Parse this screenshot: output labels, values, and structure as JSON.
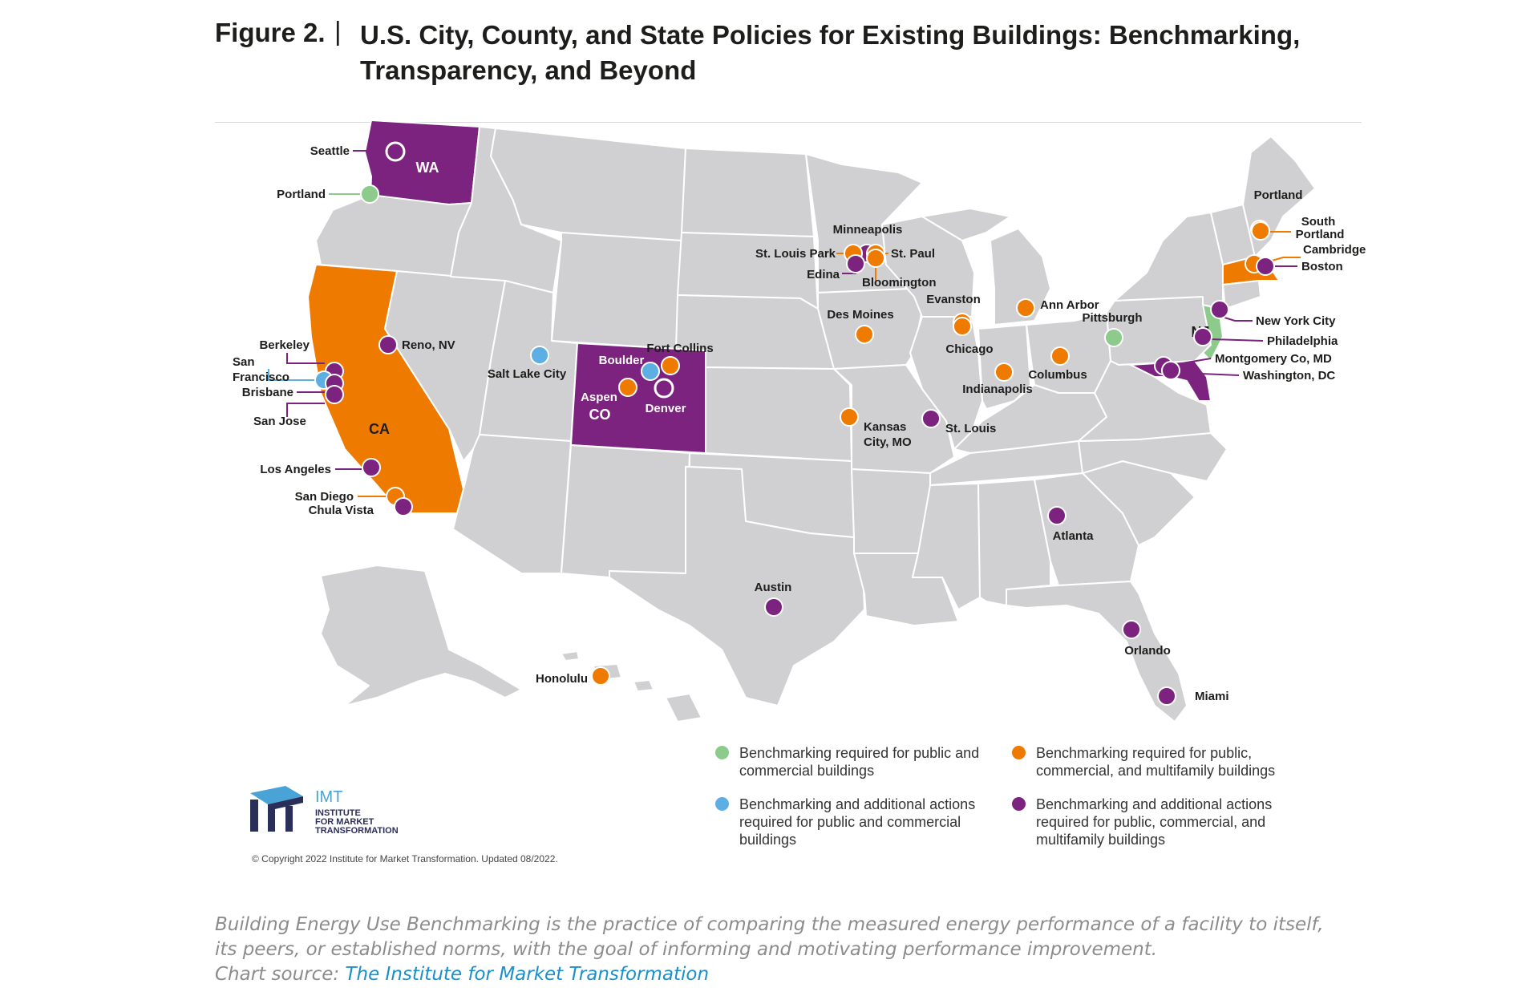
{
  "header": {
    "figure_label": "Figure 2.",
    "separator": "|",
    "title": "U.S. City, County, and State Policies for Existing Buildings: Benchmarking, Transparency, and Beyond"
  },
  "colors": {
    "land": "#d0d0d2",
    "border": "#ffffff",
    "public_commercial": "#8ccb8c",
    "additional_public_commercial": "#5daee2",
    "public_commercial_multifamily": "#ef7a00",
    "additional_all": "#7b237e"
  },
  "map": {
    "state_labels": [
      {
        "label": "WA",
        "category": "additional_all"
      },
      {
        "label": "CA",
        "category": "public_commercial_multifamily"
      },
      {
        "label": "CO",
        "category": "additional_all"
      },
      {
        "label": "NJ",
        "category": "public_commercial"
      }
    ],
    "cities": [
      {
        "label": "Seattle",
        "category": "additional_all"
      },
      {
        "label": "Portland",
        "category": "public_commercial"
      },
      {
        "label": "Berkeley",
        "category": "additional_all"
      },
      {
        "label": "San Francisco",
        "category": "additional_public_commercial"
      },
      {
        "label": "Brisbane",
        "category": "additional_all"
      },
      {
        "label": "San Jose",
        "category": "additional_all"
      },
      {
        "label": "Reno, NV",
        "category": "additional_all"
      },
      {
        "label": "Los Angeles",
        "category": "additional_all"
      },
      {
        "label": "San Diego",
        "category": "public_commercial_multifamily"
      },
      {
        "label": "Chula Vista",
        "category": "additional_all"
      },
      {
        "label": "Salt Lake City",
        "category": "additional_public_commercial"
      },
      {
        "label": "Boulder",
        "category": "additional_public_commercial"
      },
      {
        "label": "Fort Collins",
        "category": "public_commercial_multifamily"
      },
      {
        "label": "Aspen",
        "category": "public_commercial_multifamily"
      },
      {
        "label": "Denver",
        "category": "additional_all"
      },
      {
        "label": "Honolulu",
        "category": "public_commercial_multifamily"
      },
      {
        "label": "Austin",
        "category": "additional_all"
      },
      {
        "label": "Minneapolis",
        "category": "additional_all"
      },
      {
        "label": "St. Louis Park",
        "category": "public_commercial_multifamily"
      },
      {
        "label": "St. Paul",
        "category": "public_commercial_multifamily"
      },
      {
        "label": "Edina",
        "category": "additional_all"
      },
      {
        "label": "Bloomington",
        "category": "public_commercial_multifamily"
      },
      {
        "label": "Des Moines",
        "category": "public_commercial_multifamily"
      },
      {
        "label": "Kansas City, MO",
        "category": "public_commercial_multifamily"
      },
      {
        "label": "St. Louis",
        "category": "additional_all"
      },
      {
        "label": "Evanston",
        "category": "public_commercial_multifamily"
      },
      {
        "label": "Chicago",
        "category": "public_commercial_multifamily"
      },
      {
        "label": "Indianapolis",
        "category": "public_commercial_multifamily"
      },
      {
        "label": "Ann Arbor",
        "category": "public_commercial_multifamily"
      },
      {
        "label": "Columbus",
        "category": "public_commercial_multifamily"
      },
      {
        "label": "Pittsburgh",
        "category": "public_commercial"
      },
      {
        "label": "Atlanta",
        "category": "additional_all"
      },
      {
        "label": "Orlando",
        "category": "additional_all"
      },
      {
        "label": "Miami",
        "category": "additional_all"
      },
      {
        "label": "Portland",
        "category": "public_commercial_multifamily"
      },
      {
        "label": "South Portland",
        "category": "public_commercial_multifamily"
      },
      {
        "label": "Cambridge",
        "category": "public_commercial_multifamily"
      },
      {
        "label": "Boston",
        "category": "additional_all"
      },
      {
        "label": "New York City",
        "category": "additional_all"
      },
      {
        "label": "Philadelphia",
        "category": "additional_all"
      },
      {
        "label": "Montgomery Co, MD",
        "category": "additional_all"
      },
      {
        "label": "Washington, DC",
        "category": "additional_all"
      }
    ]
  },
  "legend": [
    {
      "category": "public_commercial",
      "text": "Benchmarking required for public and commercial buildings"
    },
    {
      "category": "public_commercial_multifamily",
      "text": "Benchmarking required for public, commercial, and multifamily buildings"
    },
    {
      "category": "additional_public_commercial",
      "text": "Benchmarking and additional actions required for public and commercial buildings"
    },
    {
      "category": "additional_all",
      "text": "Benchmarking and additional actions required for public, commercial, and multifamily buildings"
    }
  ],
  "logo": {
    "name": "IMT",
    "line1": "INSTITUTE",
    "line2": "FOR MARKET",
    "line3": "TRANSFORMATION"
  },
  "copyright": "© Copyright 2022 Institute for Market Transformation. Updated 08/2022.",
  "caption": {
    "line1": "Building Energy Use Benchmarking is the practice of comparing the measured energy performance of a facility to itself,",
    "line2": "its peers, or established norms, with the goal of informing and motivating performance improvement.",
    "source_prefix": "Chart source: ",
    "source_link": "The Institute for Market Transformation"
  }
}
